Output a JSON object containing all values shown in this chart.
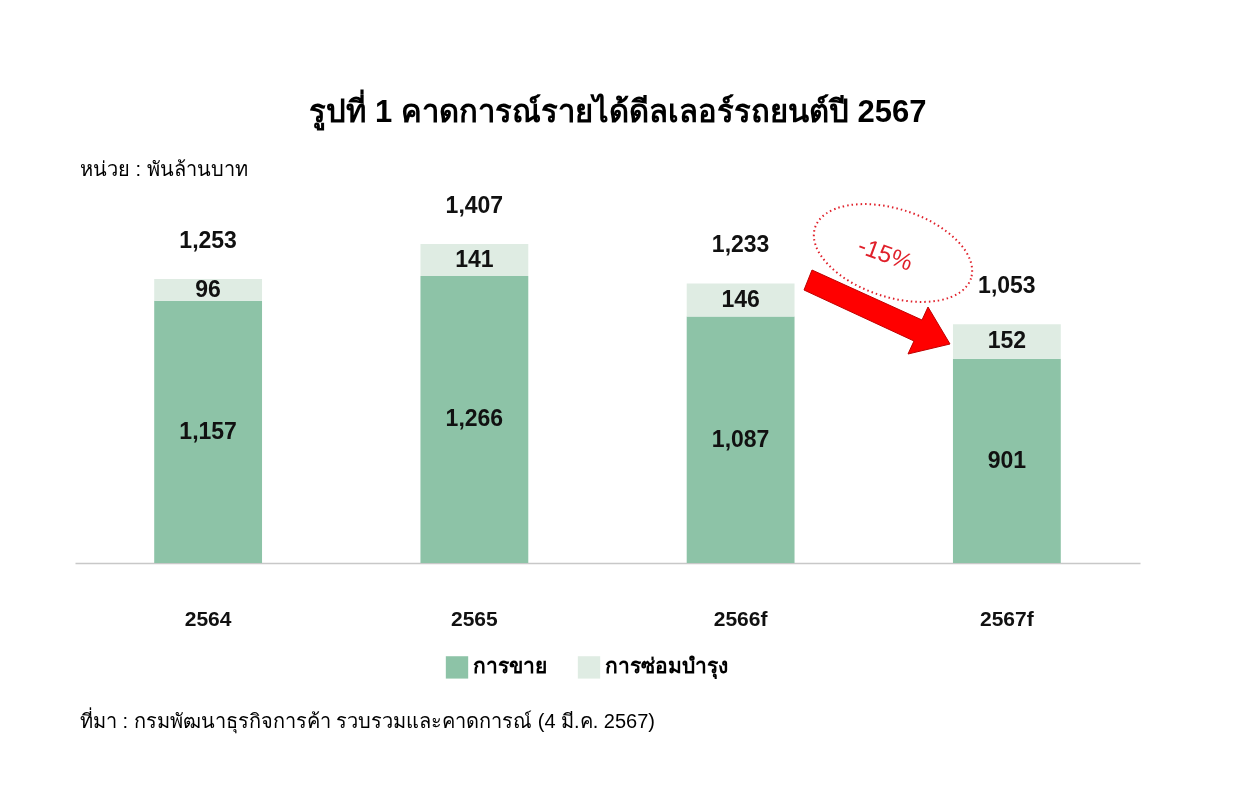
{
  "chart_data": {
    "type": "bar",
    "title": "รูปที่ 1 คาดการณ์รายได้ดีลเลอร์รถยนต์ปี 2567",
    "subtitle": "หน่วย : พันล้านบาท",
    "categories": [
      "2564",
      "2565",
      "2566f",
      "2567f"
    ],
    "series": [
      {
        "name": "การขาย",
        "color": "#8dc3a7",
        "values": [
          1157,
          1266,
          1087,
          901
        ],
        "value_labels": [
          "1,157",
          "1,266",
          "1,087",
          "901"
        ]
      },
      {
        "name": "การซ่อมบำรุง",
        "color": "#dfece3",
        "values": [
          96,
          141,
          146,
          152
        ],
        "value_labels": [
          "96",
          "141",
          "146",
          "152"
        ]
      }
    ],
    "stacked": true,
    "totals": [
      "1,253",
      "1,407",
      "1,233",
      "1,053"
    ],
    "legend": "bottom",
    "grid": false,
    "annotations": [
      "-15%",
      "ที่มา : กรมพัฒนาธุรกิจการค้า รวบรวมและคาดการณ์ (4 มี.ค. 2567)"
    ]
  }
}
